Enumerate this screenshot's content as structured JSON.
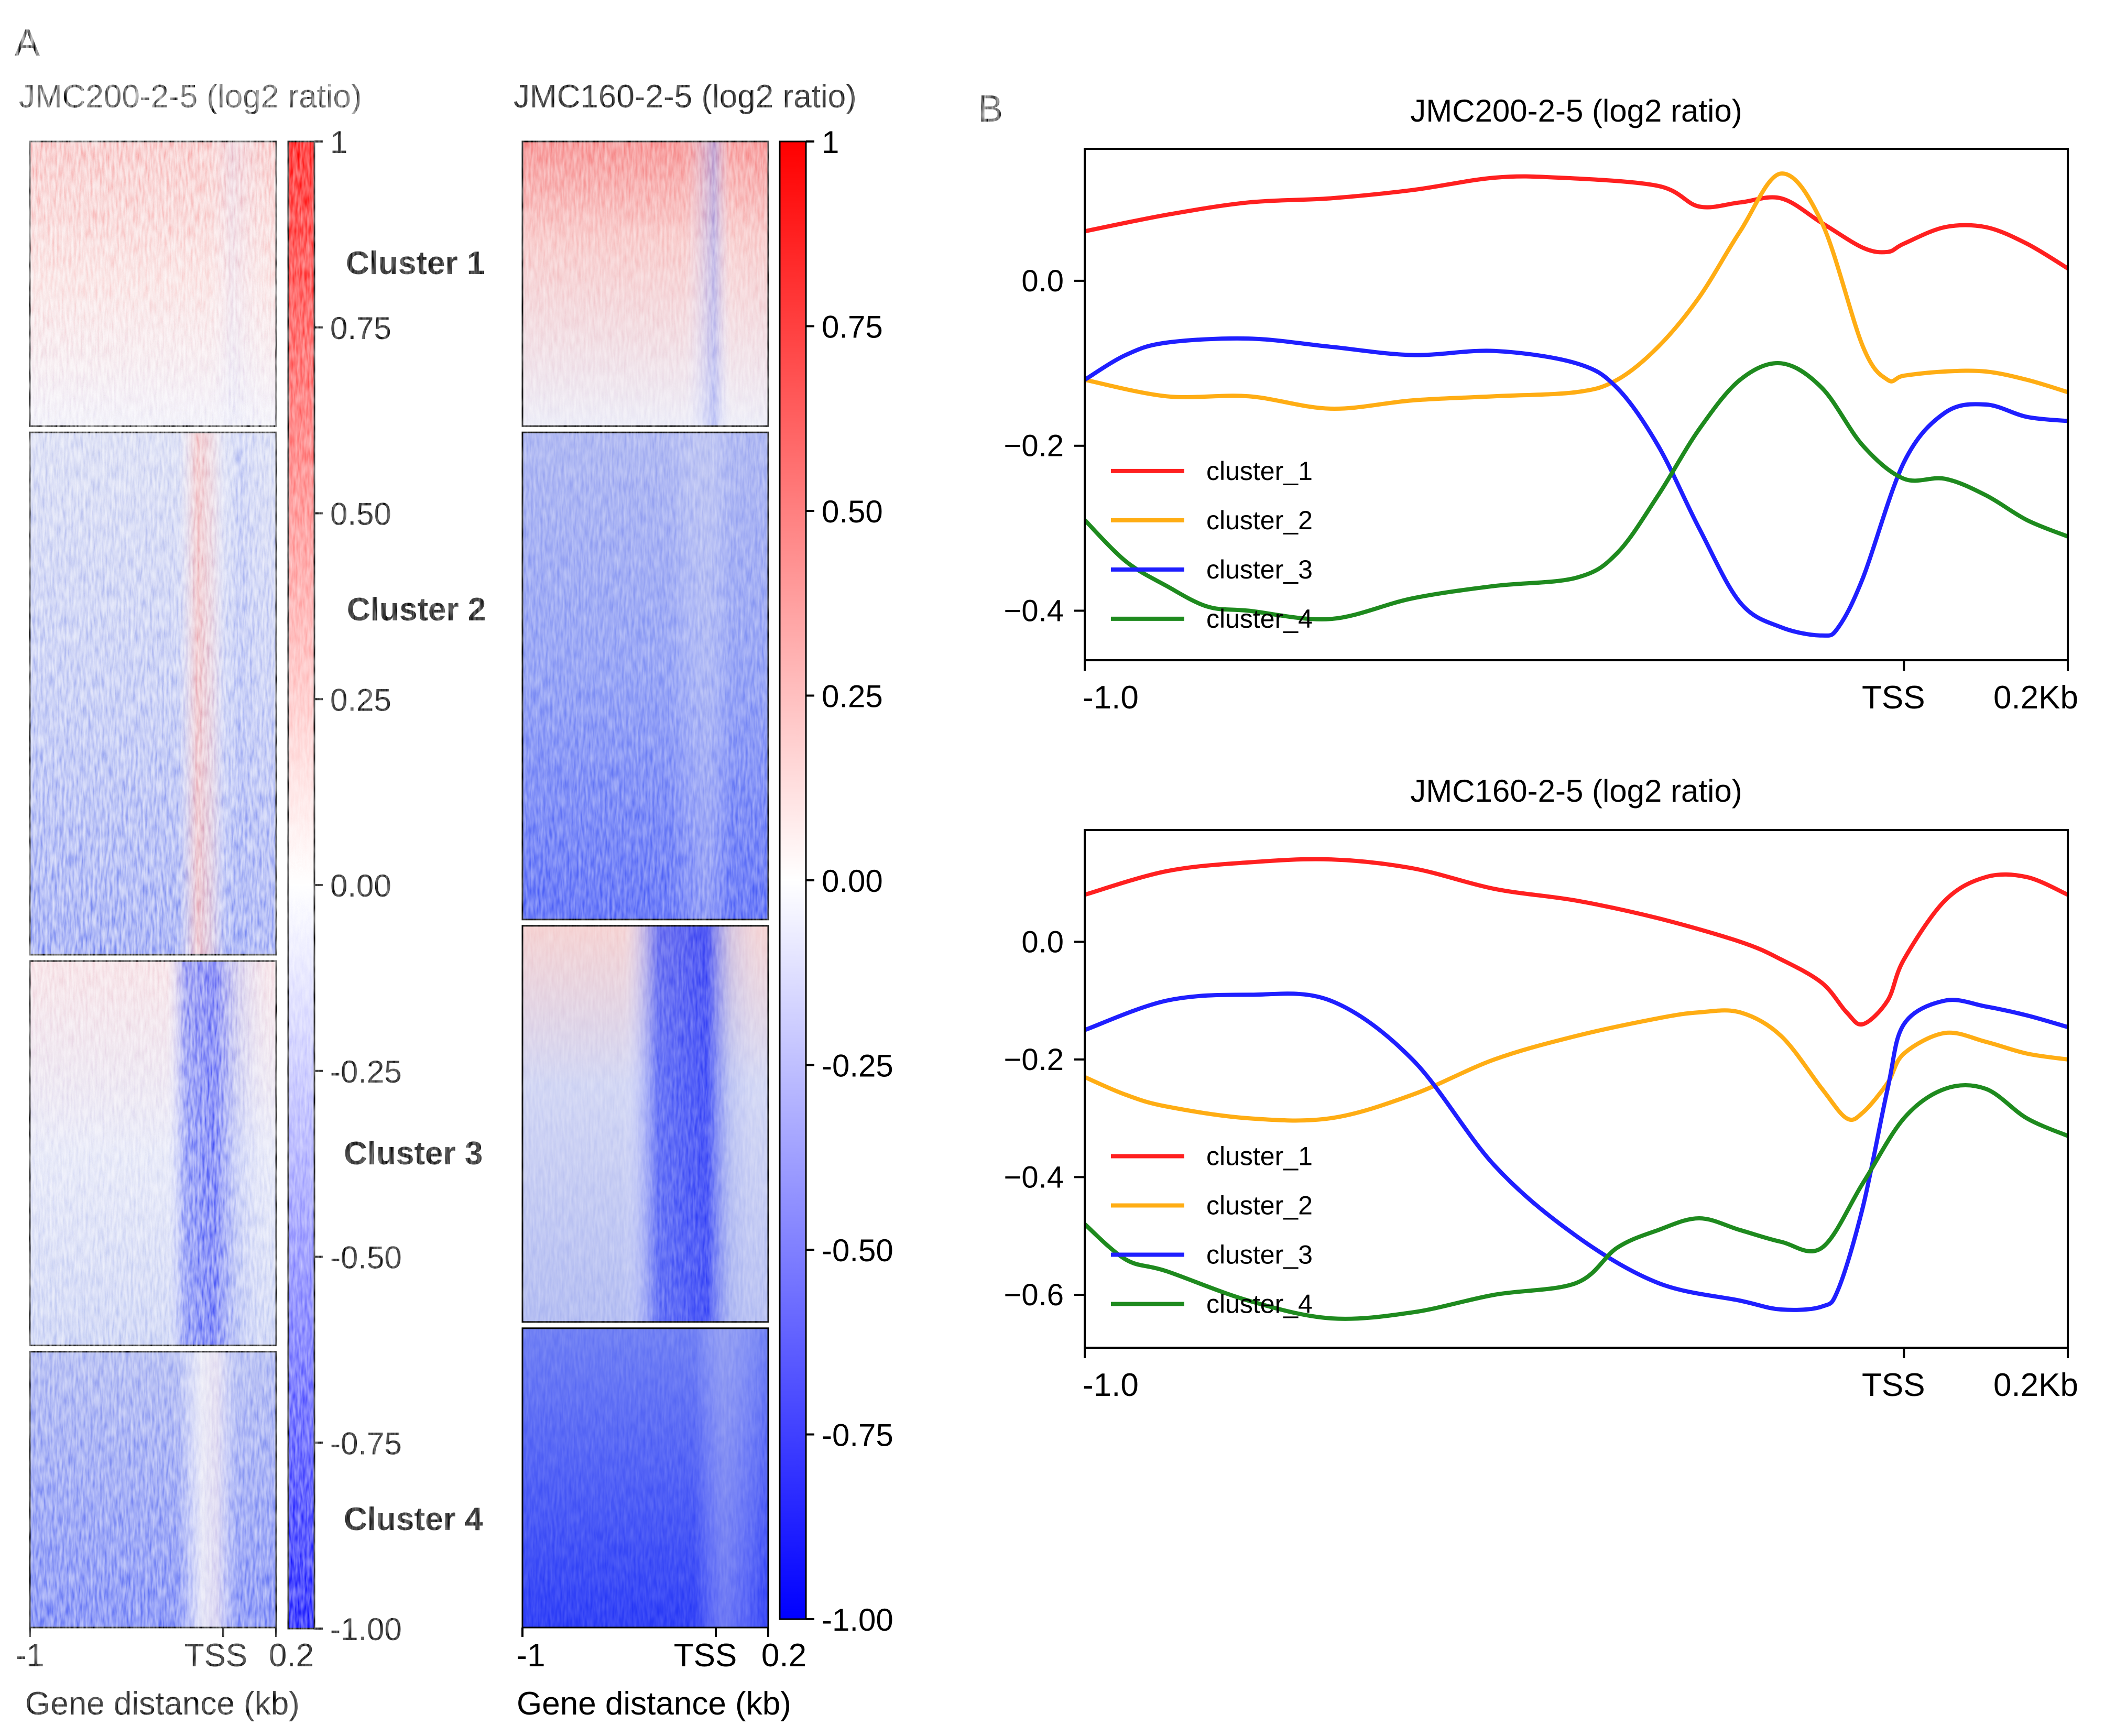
{
  "panel_labels": {
    "a": "A",
    "b": "B"
  },
  "colors": {
    "cluster_1": "#ff2020",
    "cluster_2": "#ffad14",
    "cluster_3": "#1f1fff",
    "cluster_4": "#1e8a1e",
    "heatmap_high": "#ff0000",
    "heatmap_mid": "#ffffff",
    "heatmap_low": "#0000ff"
  },
  "chart_data": [
    {
      "type": "heatmap",
      "title": "JMC200-2-5 (log2 ratio)",
      "xlabel": "Gene distance (kb)",
      "x_ticks": [
        "-1",
        "TSS",
        "0.2"
      ],
      "colorbar_ticks": [
        "1",
        "0.75",
        "0.50",
        "0.25",
        "0.00",
        "-0.25",
        "-0.50",
        "-0.75",
        "-1.00"
      ],
      "clim": [
        -1.0,
        1.0
      ],
      "colormap": "blue-white-red",
      "cluster_labels": [
        "Cluster 1",
        "Cluster 2",
        "Cluster 3",
        "Cluster 4"
      ],
      "cluster_row_fractions": [
        0.194,
        0.356,
        0.262,
        0.188
      ],
      "cluster_patterns": [
        "weak red enrichment across the window, fading toward white",
        "light blue background with a red stripe just upstream of the TSS",
        "faint red upstream, a strong blue band around the TSS",
        "blue throughout with a pale white stripe just upstream of the TSS"
      ]
    },
    {
      "type": "heatmap",
      "title": "JMC160-2-5 (log2 ratio)",
      "xlabel": "Gene distance (kb)",
      "x_ticks": [
        "-1",
        "TSS",
        "0.2"
      ],
      "colorbar_ticks": [
        "1",
        "0.75",
        "0.50",
        "0.25",
        "0.00",
        "-0.25",
        "-0.50",
        "-0.75",
        "-1.00"
      ],
      "clim": [
        -1.0,
        1.0
      ],
      "colormap": "blue-white-red",
      "cluster_row_fractions": [
        0.194,
        0.332,
        0.27,
        0.204
      ],
      "cluster_patterns": [
        "red enrichment upstream, blue stripe at the TSS",
        "blue throughout, darker toward the bottom",
        "faint red upstream, strong blue band before the TSS",
        "strong blue throughout"
      ]
    },
    {
      "type": "line",
      "title": "JMC200-2-5 (log2 ratio)",
      "x_range": [
        -1.0,
        0.2
      ],
      "x_ticks": [
        {
          "x": -1.0,
          "label": "-1.0"
        },
        {
          "x": 0.0,
          "label": "TSS"
        },
        {
          "x": 0.2,
          "label": "0.2Kb"
        }
      ],
      "ylim": [
        -0.46,
        0.16
      ],
      "y_ticks": [
        0.0,
        -0.2,
        -0.4
      ],
      "y_tick_labels": [
        "0.0",
        "−0.2",
        "−0.4"
      ],
      "legend": "left",
      "series": [
        {
          "name": "cluster_1",
          "x": [
            -1.0,
            -0.9,
            -0.8,
            -0.7,
            -0.6,
            -0.5,
            -0.42,
            -0.3,
            -0.25,
            -0.2,
            -0.15,
            -0.1,
            -0.05,
            -0.02,
            0.0,
            0.05,
            0.1,
            0.15,
            0.2
          ],
          "y": [
            0.06,
            0.08,
            0.095,
            0.1,
            0.11,
            0.125,
            0.125,
            0.115,
            0.09,
            0.095,
            0.1,
            0.07,
            0.04,
            0.035,
            0.045,
            0.065,
            0.065,
            0.045,
            0.015
          ]
        },
        {
          "name": "cluster_2",
          "x": [
            -1.0,
            -0.9,
            -0.8,
            -0.7,
            -0.6,
            -0.5,
            -0.4,
            -0.35,
            -0.3,
            -0.25,
            -0.2,
            -0.15,
            -0.1,
            -0.05,
            -0.02,
            0.0,
            0.05,
            0.1,
            0.15,
            0.2
          ],
          "y": [
            -0.12,
            -0.14,
            -0.14,
            -0.155,
            -0.145,
            -0.14,
            -0.135,
            -0.12,
            -0.08,
            -0.02,
            0.06,
            0.13,
            0.07,
            -0.08,
            -0.12,
            -0.115,
            -0.11,
            -0.11,
            -0.12,
            -0.135
          ]
        },
        {
          "name": "cluster_3",
          "x": [
            -1.0,
            -0.95,
            -0.9,
            -0.8,
            -0.7,
            -0.6,
            -0.5,
            -0.4,
            -0.35,
            -0.3,
            -0.25,
            -0.2,
            -0.15,
            -0.1,
            -0.08,
            -0.05,
            0.0,
            0.05,
            0.1,
            0.15,
            0.2
          ],
          "y": [
            -0.12,
            -0.09,
            -0.075,
            -0.07,
            -0.08,
            -0.09,
            -0.085,
            -0.1,
            -0.13,
            -0.2,
            -0.3,
            -0.39,
            -0.42,
            -0.43,
            -0.42,
            -0.36,
            -0.22,
            -0.16,
            -0.15,
            -0.165,
            -0.17
          ]
        },
        {
          "name": "cluster_4",
          "x": [
            -1.0,
            -0.95,
            -0.9,
            -0.85,
            -0.8,
            -0.7,
            -0.6,
            -0.5,
            -0.4,
            -0.35,
            -0.3,
            -0.25,
            -0.2,
            -0.15,
            -0.1,
            -0.05,
            0.0,
            0.05,
            0.1,
            0.15,
            0.2
          ],
          "y": [
            -0.29,
            -0.34,
            -0.37,
            -0.395,
            -0.4,
            -0.41,
            -0.385,
            -0.37,
            -0.36,
            -0.33,
            -0.26,
            -0.18,
            -0.12,
            -0.1,
            -0.13,
            -0.2,
            -0.24,
            -0.24,
            -0.26,
            -0.29,
            -0.31
          ]
        }
      ]
    },
    {
      "type": "line",
      "title": "JMC160-2-5 (log2 ratio)",
      "x_range": [
        -1.0,
        0.2
      ],
      "x_ticks": [
        {
          "x": -1.0,
          "label": "-1.0"
        },
        {
          "x": 0.0,
          "label": "TSS"
        },
        {
          "x": 0.2,
          "label": "0.2Kb"
        }
      ],
      "ylim": [
        -0.69,
        0.19
      ],
      "y_ticks": [
        0.0,
        -0.2,
        -0.4,
        -0.6
      ],
      "y_tick_labels": [
        "0.0",
        "−0.2",
        "−0.4",
        "−0.6"
      ],
      "legend": "left",
      "series": [
        {
          "name": "cluster_1",
          "x": [
            -1.0,
            -0.9,
            -0.8,
            -0.7,
            -0.6,
            -0.5,
            -0.4,
            -0.3,
            -0.2,
            -0.15,
            -0.1,
            -0.07,
            -0.05,
            -0.02,
            0.0,
            0.05,
            0.1,
            0.15,
            0.2
          ],
          "y": [
            0.08,
            0.12,
            0.135,
            0.14,
            0.125,
            0.09,
            0.07,
            0.04,
            0.0,
            -0.03,
            -0.07,
            -0.12,
            -0.14,
            -0.1,
            -0.03,
            0.07,
            0.11,
            0.11,
            0.08
          ]
        },
        {
          "name": "cluster_2",
          "x": [
            -1.0,
            -0.95,
            -0.9,
            -0.8,
            -0.7,
            -0.6,
            -0.5,
            -0.4,
            -0.3,
            -0.25,
            -0.2,
            -0.15,
            -0.1,
            -0.07,
            -0.05,
            -0.02,
            0.0,
            0.05,
            0.1,
            0.15,
            0.2
          ],
          "y": [
            -0.23,
            -0.26,
            -0.28,
            -0.3,
            -0.3,
            -0.26,
            -0.2,
            -0.16,
            -0.13,
            -0.12,
            -0.12,
            -0.16,
            -0.25,
            -0.3,
            -0.29,
            -0.24,
            -0.19,
            -0.155,
            -0.17,
            -0.19,
            -0.2
          ]
        },
        {
          "name": "cluster_3",
          "x": [
            -1.0,
            -0.9,
            -0.8,
            -0.7,
            -0.6,
            -0.5,
            -0.4,
            -0.3,
            -0.2,
            -0.15,
            -0.1,
            -0.08,
            -0.05,
            -0.02,
            0.0,
            0.05,
            0.1,
            0.15,
            0.2
          ],
          "y": [
            -0.15,
            -0.1,
            -0.09,
            -0.1,
            -0.2,
            -0.38,
            -0.5,
            -0.58,
            -0.61,
            -0.625,
            -0.62,
            -0.59,
            -0.45,
            -0.25,
            -0.14,
            -0.1,
            -0.11,
            -0.125,
            -0.145
          ]
        },
        {
          "name": "cluster_4",
          "x": [
            -1.0,
            -0.95,
            -0.9,
            -0.8,
            -0.7,
            -0.6,
            -0.5,
            -0.4,
            -0.35,
            -0.3,
            -0.25,
            -0.2,
            -0.15,
            -0.1,
            -0.05,
            0.0,
            0.05,
            0.1,
            0.15,
            0.2
          ],
          "y": [
            -0.48,
            -0.54,
            -0.56,
            -0.61,
            -0.64,
            -0.63,
            -0.6,
            -0.58,
            -0.52,
            -0.49,
            -0.47,
            -0.49,
            -0.51,
            -0.52,
            -0.41,
            -0.3,
            -0.25,
            -0.25,
            -0.3,
            -0.33
          ]
        }
      ]
    }
  ]
}
